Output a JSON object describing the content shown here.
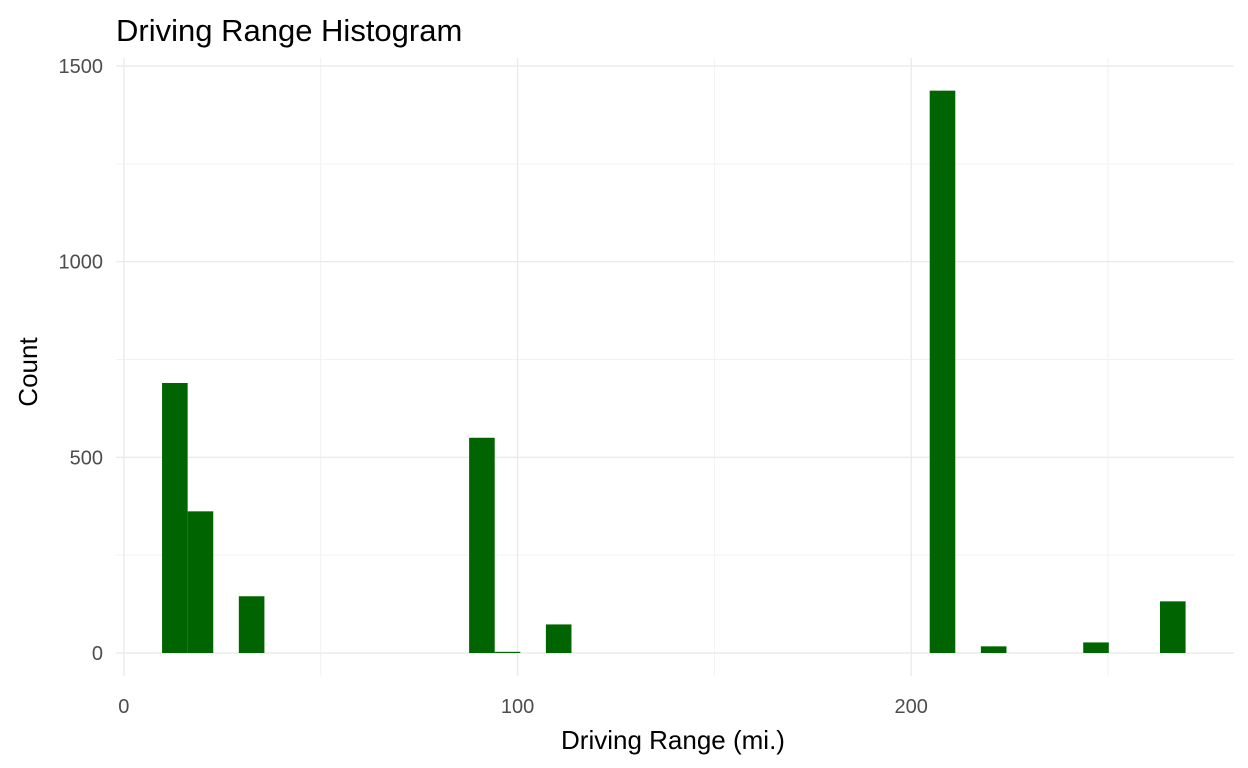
{
  "chart_data": {
    "type": "bar",
    "subtype": "histogram",
    "title": "Driving Range Histogram",
    "xlabel": "Driving Range (mi.)",
    "ylabel": "Count",
    "xlim": [
      -2,
      282
    ],
    "ylim": [
      -65,
      1500
    ],
    "x_ticks": [
      0,
      100,
      200
    ],
    "x_tick_labels": [
      "0",
      "100",
      "200"
    ],
    "x_minor_ticks": [
      50,
      150,
      250
    ],
    "y_ticks": [
      0,
      500,
      1000,
      1500
    ],
    "y_tick_labels": [
      "0",
      "500",
      "1000",
      "1500"
    ],
    "y_minor_ticks": [
      250,
      750,
      1250
    ],
    "grid": true,
    "bin_width": 6.5,
    "bars": [
      {
        "x_start": 9.7,
        "x_end": 16.2,
        "count": 690
      },
      {
        "x_start": 16.2,
        "x_end": 22.7,
        "count": 362
      },
      {
        "x_start": 29.2,
        "x_end": 35.7,
        "count": 145
      },
      {
        "x_start": 87.7,
        "x_end": 94.2,
        "count": 550
      },
      {
        "x_start": 94.2,
        "x_end": 100.7,
        "count": 3
      },
      {
        "x_start": 107.2,
        "x_end": 113.7,
        "count": 73
      },
      {
        "x_start": 204.7,
        "x_end": 211.2,
        "count": 1437
      },
      {
        "x_start": 217.7,
        "x_end": 224.2,
        "count": 17
      },
      {
        "x_start": 243.7,
        "x_end": 250.2,
        "count": 27
      },
      {
        "x_start": 263.2,
        "x_end": 269.7,
        "count": 132
      }
    ],
    "colors": {
      "bar": "#006400",
      "grid_major": "#ebebeb",
      "grid_minor": "#f2f2f2",
      "tick_label": "#4d4d4d",
      "text": "#000000"
    }
  }
}
